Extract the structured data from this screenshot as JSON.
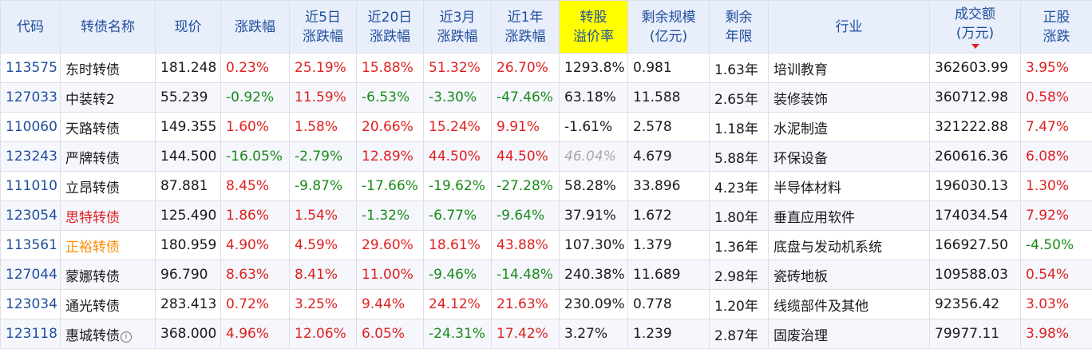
{
  "header": {
    "code": "代码",
    "name": "转债名称",
    "price": "现价",
    "chg": "涨跌幅",
    "chg5d_1": "近5日",
    "chg5d_2": "涨跌幅",
    "chg20d_1": "近20日",
    "chg20d_2": "涨跌幅",
    "chg3m_1": "近3月",
    "chg3m_2": "涨跌幅",
    "chg1y_1": "近1年",
    "chg1y_2": "涨跌幅",
    "premium_1": "转股",
    "premium_2": "溢价率",
    "size_1": "剩余规模",
    "size_2": "(亿元)",
    "term_1": "剩余",
    "term_2": "年限",
    "industry": "行业",
    "volume_1": "成交额",
    "volume_2": "(万元)",
    "stock_chg_1": "正股",
    "stock_chg_2": "涨跌"
  },
  "sort": {
    "column": "volume",
    "direction": "desc",
    "indicator_color": "#e02020"
  },
  "colors": {
    "up": "#e02020",
    "down": "#1a8a1a",
    "code": "#1f4e9c",
    "highlight_header": "#ffff00",
    "muted": "#a8a8a8",
    "orange": "#ff8c00"
  },
  "rows": [
    {
      "code": "113575",
      "name": "东时转债",
      "price": "181.248",
      "chg": "0.23%",
      "chg5d": "25.19%",
      "chg20d": "15.88%",
      "chg3m": "51.32%",
      "chg1y": "26.70%",
      "premium": "1293.8%",
      "size": "0.981",
      "term": "1.63年",
      "industry": "培训教育",
      "volume": "362603.99",
      "stock_chg": "3.95%"
    },
    {
      "code": "127033",
      "name": "中装转2",
      "price": "55.239",
      "chg": "-0.92%",
      "chg5d": "11.59%",
      "chg20d": "-6.53%",
      "chg3m": "-3.30%",
      "chg1y": "-47.46%",
      "premium": "63.18%",
      "size": "11.588",
      "term": "2.65年",
      "industry": "装修装饰",
      "volume": "360712.98",
      "stock_chg": "0.58%"
    },
    {
      "code": "110060",
      "name": "天路转债",
      "price": "149.355",
      "chg": "1.60%",
      "chg5d": "1.58%",
      "chg20d": "20.66%",
      "chg3m": "15.24%",
      "chg1y": "9.91%",
      "premium": "-1.61%",
      "size": "2.578",
      "term": "1.18年",
      "industry": "水泥制造",
      "volume": "321222.88",
      "stock_chg": "7.47%"
    },
    {
      "code": "123243",
      "name": "严牌转债",
      "price": "144.500",
      "chg": "-16.05%",
      "chg5d": "-2.79%",
      "chg20d": "12.89%",
      "chg3m": "44.50%",
      "chg1y": "44.50%",
      "premium": "46.04%",
      "size": "4.679",
      "term": "5.88年",
      "industry": "环保设备",
      "volume": "260616.36",
      "stock_chg": "6.08%"
    },
    {
      "code": "111010",
      "name": "立昂转债",
      "price": "87.881",
      "chg": "8.45%",
      "chg5d": "-9.87%",
      "chg20d": "-17.66%",
      "chg3m": "-19.62%",
      "chg1y": "-27.28%",
      "premium": "58.28%",
      "size": "33.896",
      "term": "4.23年",
      "industry": "半导体材料",
      "volume": "196030.13",
      "stock_chg": "1.30%"
    },
    {
      "code": "123054",
      "name": "思特转债",
      "price": "125.490",
      "chg": "1.86%",
      "chg5d": "1.54%",
      "chg20d": "-1.32%",
      "chg3m": "-6.77%",
      "chg1y": "-9.64%",
      "premium": "37.91%",
      "size": "1.672",
      "term": "1.80年",
      "industry": "垂直应用软件",
      "volume": "174034.54",
      "stock_chg": "7.92%"
    },
    {
      "code": "113561",
      "name": "正裕转债",
      "price": "180.959",
      "chg": "4.90%",
      "chg5d": "4.59%",
      "chg20d": "29.60%",
      "chg3m": "18.61%",
      "chg1y": "43.88%",
      "premium": "107.30%",
      "size": "1.379",
      "term": "1.36年",
      "industry": "底盘与发动机系统",
      "volume": "166927.50",
      "stock_chg": "-4.50%"
    },
    {
      "code": "127044",
      "name": "蒙娜转债",
      "price": "96.790",
      "chg": "8.63%",
      "chg5d": "8.41%",
      "chg20d": "11.00%",
      "chg3m": "-9.46%",
      "chg1y": "-14.48%",
      "premium": "240.38%",
      "size": "11.689",
      "term": "2.98年",
      "industry": "瓷砖地板",
      "volume": "109588.03",
      "stock_chg": "0.54%"
    },
    {
      "code": "123034",
      "name": "通光转债",
      "price": "283.413",
      "chg": "0.72%",
      "chg5d": "3.25%",
      "chg20d": "9.44%",
      "chg3m": "24.12%",
      "chg1y": "21.63%",
      "premium": "230.09%",
      "size": "0.778",
      "term": "1.20年",
      "industry": "线缆部件及其他",
      "volume": "92356.42",
      "stock_chg": "3.03%"
    },
    {
      "code": "123118",
      "name": "惠城转债",
      "price": "368.000",
      "chg": "4.96%",
      "chg5d": "12.06%",
      "chg20d": "6.05%",
      "chg3m": "-24.31%",
      "chg1y": "17.42%",
      "premium": "3.27%",
      "size": "1.239",
      "term": "2.87年",
      "industry": "固废治理",
      "volume": "79977.11",
      "stock_chg": "3.98%"
    }
  ]
}
